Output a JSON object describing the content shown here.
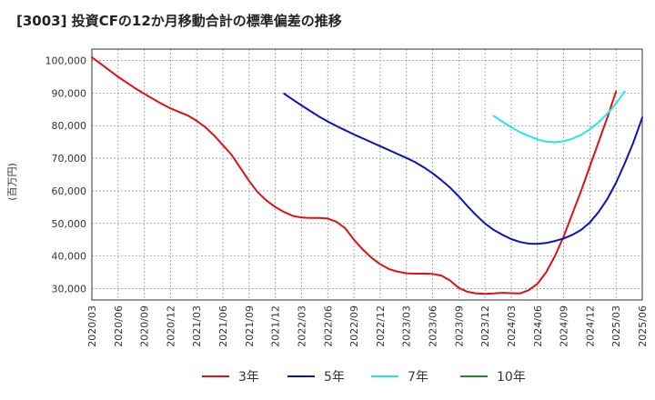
{
  "chart_data": {
    "type": "line",
    "title": "[3003]  投資CFの12か月移動合計の標準偏差の推移",
    "ylabel": "(百万円)",
    "xlabel": "",
    "ylim": [
      26500,
      103500
    ],
    "y_ticks": [
      30000,
      40000,
      50000,
      60000,
      70000,
      80000,
      90000,
      100000
    ],
    "y_tick_labels": [
      "30,000",
      "40,000",
      "50,000",
      "60,000",
      "70,000",
      "80,000",
      "90,000",
      "100,000"
    ],
    "x_ticks": [
      "2020/03",
      "2020/06",
      "2020/09",
      "2020/12",
      "2021/03",
      "2021/06",
      "2021/09",
      "2021/12",
      "2022/03",
      "2022/06",
      "2022/09",
      "2022/12",
      "2023/03",
      "2023/06",
      "2023/09",
      "2023/12",
      "2024/03",
      "2024/06",
      "2024/09",
      "2024/12",
      "2025/03",
      "2025/06"
    ],
    "grid": true,
    "legend_position": "bottom",
    "series": [
      {
        "name": "3年",
        "color": "#dd1111",
        "points": [
          [
            "2020/03",
            101000
          ],
          [
            "2020/04",
            99000
          ],
          [
            "2020/05",
            97000
          ],
          [
            "2020/06",
            95000
          ],
          [
            "2020/07",
            93200
          ],
          [
            "2020/08",
            91400
          ],
          [
            "2020/09",
            89800
          ],
          [
            "2020/10",
            88200
          ],
          [
            "2020/11",
            86700
          ],
          [
            "2020/12",
            85300
          ],
          [
            "2021/01",
            84200
          ],
          [
            "2021/02",
            83100
          ],
          [
            "2021/03",
            81500
          ],
          [
            "2021/04",
            79500
          ],
          [
            "2021/05",
            77000
          ],
          [
            "2021/06",
            74000
          ],
          [
            "2021/07",
            71000
          ],
          [
            "2021/08",
            67000
          ],
          [
            "2021/09",
            63000
          ],
          [
            "2021/10",
            59500
          ],
          [
            "2021/11",
            57000
          ],
          [
            "2021/12",
            55000
          ],
          [
            "2022/01",
            53500
          ],
          [
            "2022/02",
            52300
          ],
          [
            "2022/03",
            51800
          ],
          [
            "2022/04",
            51700
          ],
          [
            "2022/05",
            51700
          ],
          [
            "2022/06",
            51500
          ],
          [
            "2022/07",
            50500
          ],
          [
            "2022/08",
            48500
          ],
          [
            "2022/09",
            45000
          ],
          [
            "2022/10",
            42000
          ],
          [
            "2022/11",
            39500
          ],
          [
            "2022/12",
            37500
          ],
          [
            "2023/01",
            36000
          ],
          [
            "2023/02",
            35200
          ],
          [
            "2023/03",
            34700
          ],
          [
            "2023/04",
            34600
          ],
          [
            "2023/05",
            34600
          ],
          [
            "2023/06",
            34500
          ],
          [
            "2023/07",
            34000
          ],
          [
            "2023/08",
            32500
          ],
          [
            "2023/09",
            30200
          ],
          [
            "2023/10",
            29000
          ],
          [
            "2023/11",
            28500
          ],
          [
            "2023/12",
            28400
          ],
          [
            "2024/01",
            28500
          ],
          [
            "2024/02",
            28700
          ],
          [
            "2024/03",
            28600
          ],
          [
            "2024/04",
            28500
          ],
          [
            "2024/05",
            29500
          ],
          [
            "2024/06",
            31500
          ],
          [
            "2024/07",
            35000
          ],
          [
            "2024/08",
            40000
          ],
          [
            "2024/09",
            46000
          ],
          [
            "2024/10",
            53000
          ],
          [
            "2024/11",
            60000
          ],
          [
            "2024/12",
            67500
          ],
          [
            "2025/01",
            75000
          ],
          [
            "2025/02",
            82500
          ],
          [
            "2025/03",
            90500
          ]
        ]
      },
      {
        "name": "5年",
        "color": "#0a14bb",
        "points": [
          [
            "2022/01",
            89800
          ],
          [
            "2022/02",
            88000
          ],
          [
            "2022/03",
            86200
          ],
          [
            "2022/04",
            84500
          ],
          [
            "2022/05",
            82800
          ],
          [
            "2022/06",
            81300
          ],
          [
            "2022/07",
            79900
          ],
          [
            "2022/08",
            78600
          ],
          [
            "2022/09",
            77300
          ],
          [
            "2022/10",
            76100
          ],
          [
            "2022/11",
            74900
          ],
          [
            "2022/12",
            73700
          ],
          [
            "2023/01",
            72500
          ],
          [
            "2023/02",
            71300
          ],
          [
            "2023/03",
            70100
          ],
          [
            "2023/04",
            68800
          ],
          [
            "2023/05",
            67200
          ],
          [
            "2023/06",
            65400
          ],
          [
            "2023/07",
            63300
          ],
          [
            "2023/08",
            61000
          ],
          [
            "2023/09",
            58300
          ],
          [
            "2023/10",
            55300
          ],
          [
            "2023/11",
            52500
          ],
          [
            "2023/12",
            50000
          ],
          [
            "2024/01",
            48000
          ],
          [
            "2024/02",
            46500
          ],
          [
            "2024/03",
            45200
          ],
          [
            "2024/04",
            44300
          ],
          [
            "2024/05",
            43800
          ],
          [
            "2024/06",
            43700
          ],
          [
            "2024/07",
            44000
          ],
          [
            "2024/08",
            44600
          ],
          [
            "2024/09",
            45400
          ],
          [
            "2024/10",
            46500
          ],
          [
            "2024/11",
            48000
          ],
          [
            "2024/12",
            50300
          ],
          [
            "2025/01",
            53500
          ],
          [
            "2025/02",
            57500
          ],
          [
            "2025/03",
            62500
          ],
          [
            "2025/04",
            68500
          ],
          [
            "2025/05",
            75000
          ],
          [
            "2025/06",
            82500
          ]
        ]
      },
      {
        "name": "7年",
        "color": "#22e6ee",
        "points": [
          [
            "2024/01",
            83000
          ],
          [
            "2024/02",
            81200
          ],
          [
            "2024/03",
            79500
          ],
          [
            "2024/04",
            78000
          ],
          [
            "2024/05",
            76800
          ],
          [
            "2024/06",
            75800
          ],
          [
            "2024/07",
            75100
          ],
          [
            "2024/08",
            74900
          ],
          [
            "2024/09",
            75200
          ],
          [
            "2024/10",
            76000
          ],
          [
            "2024/11",
            77200
          ],
          [
            "2024/12",
            78900
          ],
          [
            "2025/01",
            81000
          ],
          [
            "2025/02",
            83700
          ],
          [
            "2025/03",
            86800
          ],
          [
            "2025/04",
            90500
          ]
        ]
      },
      {
        "name": "10年",
        "color": "#228822",
        "points": []
      }
    ]
  }
}
